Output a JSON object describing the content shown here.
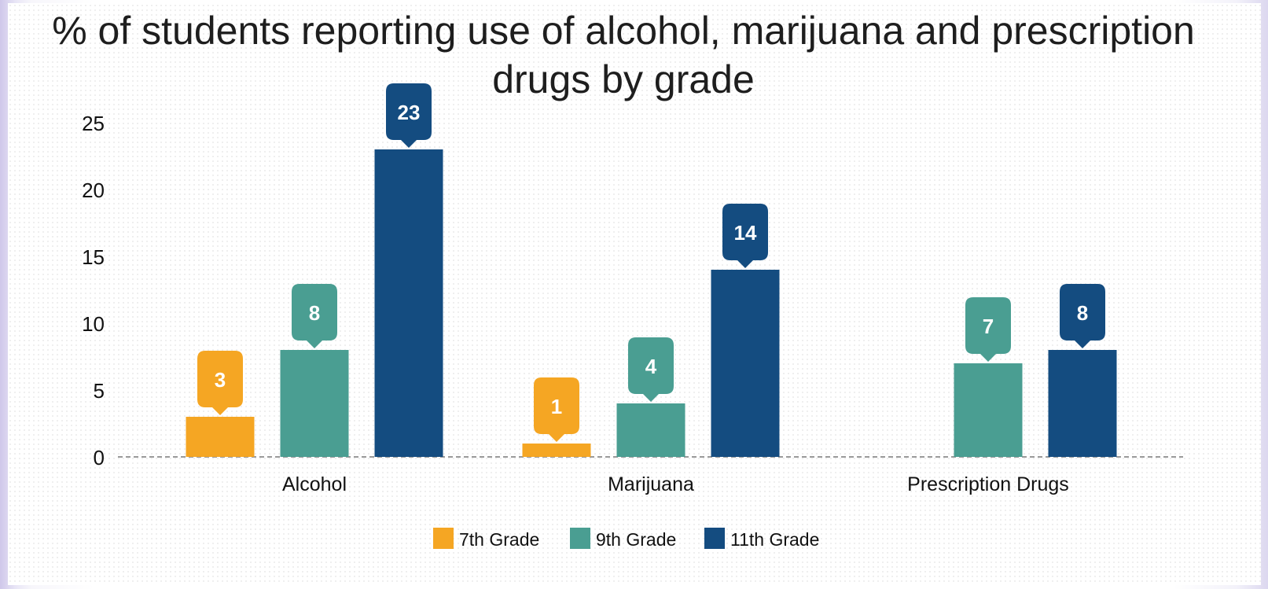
{
  "chart_data": {
    "type": "bar",
    "title_lines": [
      "% of students reporting use of alcohol, marijuana and prescription",
      "drugs by grade"
    ],
    "categories": [
      "Alcohol",
      "Marijuana",
      "Prescription Drugs"
    ],
    "series": [
      {
        "name": "7th Grade",
        "color": "#f5a623",
        "values": [
          3,
          1,
          null
        ]
      },
      {
        "name": "9th Grade",
        "color": "#4a9e92",
        "values": [
          8,
          4,
          7
        ]
      },
      {
        "name": "11th Grade",
        "color": "#144c80",
        "values": [
          23,
          14,
          8
        ]
      }
    ],
    "y_ticks": [
      0,
      5,
      10,
      15,
      20,
      25
    ],
    "ylim": [
      0,
      25
    ],
    "grid": false,
    "legend_position": "bottom",
    "data_labels": true
  }
}
